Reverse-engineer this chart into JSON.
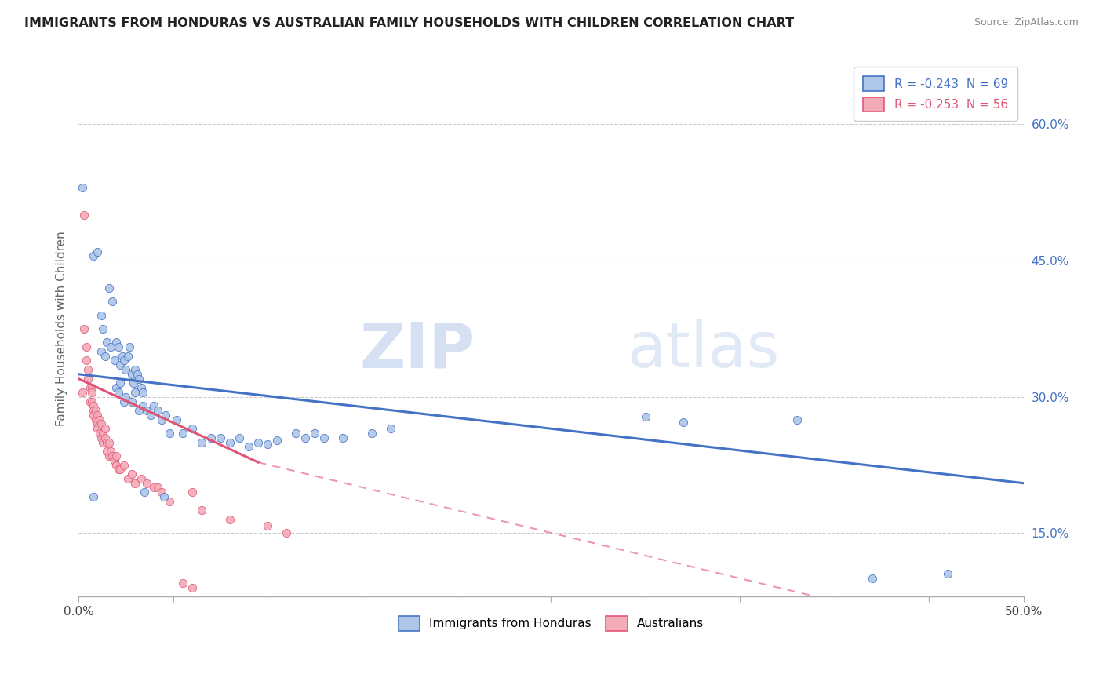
{
  "title": "IMMIGRANTS FROM HONDURAS VS AUSTRALIAN FAMILY HOUSEHOLDS WITH CHILDREN CORRELATION CHART",
  "source": "Source: ZipAtlas.com",
  "ylabel": "Family Households with Children",
  "ytick_vals": [
    0.15,
    0.3,
    0.45,
    0.6
  ],
  "xlim": [
    0.0,
    0.5
  ],
  "ylim": [
    0.08,
    0.67
  ],
  "legend_blue_label": "R = -0.243  N = 69",
  "legend_pink_label": "R = -0.253  N = 56",
  "legend_bottom_blue": "Immigrants from Honduras",
  "legend_bottom_pink": "Australians",
  "watermark_zip": "ZIP",
  "watermark_atlas": "atlas",
  "blue_color": "#aec6e8",
  "pink_color": "#f4abb8",
  "blue_line_color": "#4472c4",
  "pink_line_color": "#e05575",
  "blue_scatter": [
    [
      0.002,
      0.53
    ],
    [
      0.008,
      0.455
    ],
    [
      0.01,
      0.46
    ],
    [
      0.012,
      0.39
    ],
    [
      0.013,
      0.375
    ],
    [
      0.016,
      0.42
    ],
    [
      0.018,
      0.405
    ],
    [
      0.012,
      0.35
    ],
    [
      0.014,
      0.345
    ],
    [
      0.015,
      0.36
    ],
    [
      0.017,
      0.355
    ],
    [
      0.019,
      0.34
    ],
    [
      0.02,
      0.36
    ],
    [
      0.021,
      0.355
    ],
    [
      0.022,
      0.335
    ],
    [
      0.023,
      0.345
    ],
    [
      0.024,
      0.34
    ],
    [
      0.025,
      0.33
    ],
    [
      0.026,
      0.345
    ],
    [
      0.027,
      0.355
    ],
    [
      0.028,
      0.325
    ],
    [
      0.029,
      0.315
    ],
    [
      0.03,
      0.33
    ],
    [
      0.031,
      0.325
    ],
    [
      0.032,
      0.32
    ],
    [
      0.033,
      0.31
    ],
    [
      0.034,
      0.305
    ],
    [
      0.02,
      0.31
    ],
    [
      0.021,
      0.305
    ],
    [
      0.022,
      0.315
    ],
    [
      0.024,
      0.295
    ],
    [
      0.025,
      0.3
    ],
    [
      0.028,
      0.295
    ],
    [
      0.03,
      0.305
    ],
    [
      0.032,
      0.285
    ],
    [
      0.034,
      0.29
    ],
    [
      0.036,
      0.285
    ],
    [
      0.038,
      0.28
    ],
    [
      0.04,
      0.29
    ],
    [
      0.042,
      0.285
    ],
    [
      0.044,
      0.275
    ],
    [
      0.046,
      0.28
    ],
    [
      0.048,
      0.26
    ],
    [
      0.052,
      0.275
    ],
    [
      0.055,
      0.26
    ],
    [
      0.06,
      0.265
    ],
    [
      0.065,
      0.25
    ],
    [
      0.07,
      0.255
    ],
    [
      0.075,
      0.255
    ],
    [
      0.08,
      0.25
    ],
    [
      0.085,
      0.255
    ],
    [
      0.09,
      0.245
    ],
    [
      0.095,
      0.25
    ],
    [
      0.1,
      0.248
    ],
    [
      0.105,
      0.252
    ],
    [
      0.115,
      0.26
    ],
    [
      0.12,
      0.255
    ],
    [
      0.125,
      0.26
    ],
    [
      0.13,
      0.255
    ],
    [
      0.14,
      0.255
    ],
    [
      0.155,
      0.26
    ],
    [
      0.165,
      0.265
    ],
    [
      0.3,
      0.278
    ],
    [
      0.32,
      0.272
    ],
    [
      0.38,
      0.275
    ],
    [
      0.42,
      0.1
    ],
    [
      0.46,
      0.105
    ],
    [
      0.008,
      0.19
    ],
    [
      0.035,
      0.195
    ],
    [
      0.045,
      0.19
    ]
  ],
  "pink_scatter": [
    [
      0.002,
      0.305
    ],
    [
      0.003,
      0.375
    ],
    [
      0.004,
      0.355
    ],
    [
      0.004,
      0.34
    ],
    [
      0.005,
      0.33
    ],
    [
      0.005,
      0.32
    ],
    [
      0.006,
      0.31
    ],
    [
      0.006,
      0.295
    ],
    [
      0.007,
      0.31
    ],
    [
      0.007,
      0.305
    ],
    [
      0.007,
      0.295
    ],
    [
      0.008,
      0.29
    ],
    [
      0.008,
      0.285
    ],
    [
      0.008,
      0.28
    ],
    [
      0.009,
      0.285
    ],
    [
      0.009,
      0.275
    ],
    [
      0.01,
      0.28
    ],
    [
      0.01,
      0.27
    ],
    [
      0.01,
      0.265
    ],
    [
      0.011,
      0.275
    ],
    [
      0.011,
      0.26
    ],
    [
      0.012,
      0.27
    ],
    [
      0.012,
      0.255
    ],
    [
      0.013,
      0.26
    ],
    [
      0.013,
      0.25
    ],
    [
      0.014,
      0.265
    ],
    [
      0.014,
      0.255
    ],
    [
      0.015,
      0.25
    ],
    [
      0.015,
      0.24
    ],
    [
      0.016,
      0.25
    ],
    [
      0.016,
      0.235
    ],
    [
      0.017,
      0.24
    ],
    [
      0.018,
      0.235
    ],
    [
      0.019,
      0.23
    ],
    [
      0.02,
      0.235
    ],
    [
      0.02,
      0.225
    ],
    [
      0.021,
      0.22
    ],
    [
      0.022,
      0.22
    ],
    [
      0.024,
      0.225
    ],
    [
      0.026,
      0.21
    ],
    [
      0.028,
      0.215
    ],
    [
      0.03,
      0.205
    ],
    [
      0.033,
      0.21
    ],
    [
      0.036,
      0.205
    ],
    [
      0.04,
      0.2
    ],
    [
      0.042,
      0.2
    ],
    [
      0.044,
      0.195
    ],
    [
      0.048,
      0.185
    ],
    [
      0.06,
      0.195
    ],
    [
      0.065,
      0.175
    ],
    [
      0.08,
      0.165
    ],
    [
      0.1,
      0.158
    ],
    [
      0.11,
      0.15
    ],
    [
      0.003,
      0.5
    ],
    [
      0.06,
      0.09
    ],
    [
      0.055,
      0.095
    ]
  ],
  "blue_trendline": [
    [
      0.0,
      0.325
    ],
    [
      0.5,
      0.205
    ]
  ],
  "pink_trendline_solid": [
    [
      0.0,
      0.32
    ],
    [
      0.095,
      0.228
    ]
  ],
  "pink_trendline_dashed": [
    [
      0.095,
      0.228
    ],
    [
      0.5,
      0.025
    ]
  ]
}
